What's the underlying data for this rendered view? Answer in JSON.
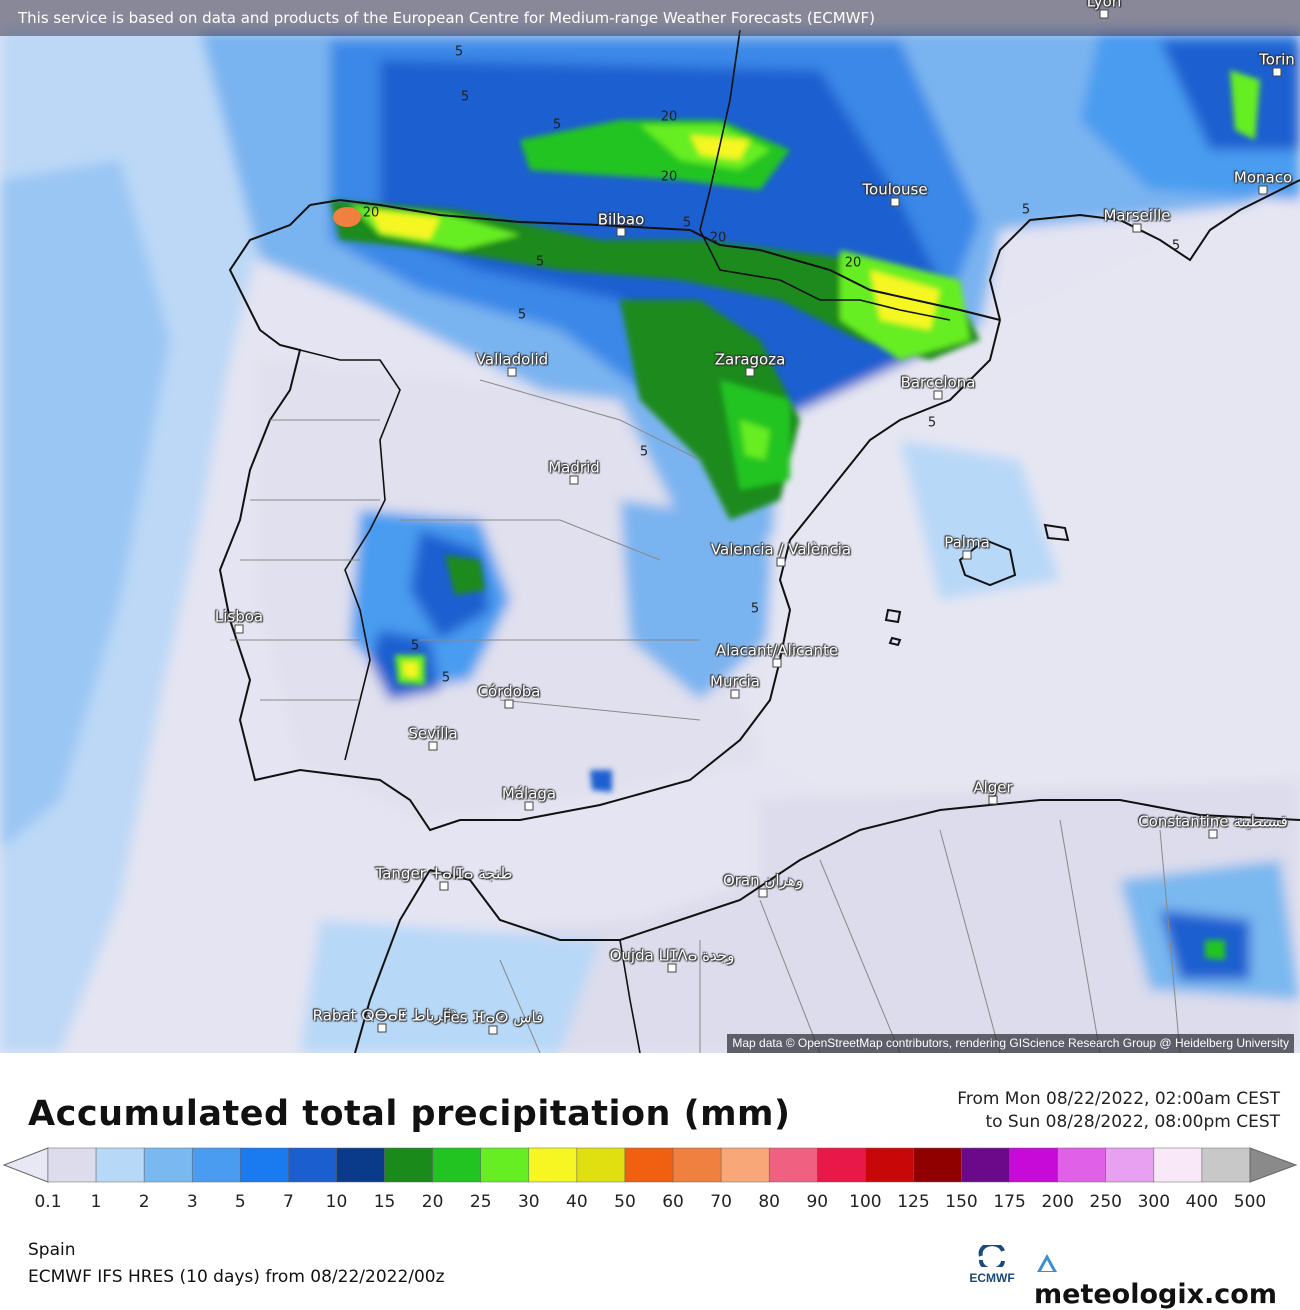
{
  "banner": "This service is based on data and products of the European Centre for Medium-range Weather Forecasts (ECMWF)",
  "attribution": "Map data © OpenStreetMap contributors, rendering GIScience Research Group @ Heidelberg University",
  "cities": [
    {
      "name": "Lyon"
    },
    {
      "name": "Torin"
    },
    {
      "name": "Monaco"
    },
    {
      "name": "Toulouse"
    },
    {
      "name": "Marseille"
    },
    {
      "name": "Bilbao"
    },
    {
      "name": "Valladolid"
    },
    {
      "name": "Zaragoza"
    },
    {
      "name": "Barcelona"
    },
    {
      "name": "Madrid"
    },
    {
      "name": "Valencia / València"
    },
    {
      "name": "Palma"
    },
    {
      "name": "Lisboa"
    },
    {
      "name": "Alacant/Alicante"
    },
    {
      "name": "Murcia"
    },
    {
      "name": "Córdoba"
    },
    {
      "name": "Sevilla"
    },
    {
      "name": "Málaga"
    },
    {
      "name": "Alger"
    },
    {
      "name": "Constantine قسنطينة"
    },
    {
      "name": "Tanger ⵜⴰⵏⵊⴰ طنجة"
    },
    {
      "name": "Oran وهران"
    },
    {
      "name": "Oujda ⵡⵊⴷⴰ وجدة"
    },
    {
      "name": "Rabat ⵕⴱⴰⵟ الرباط"
    },
    {
      "name": "Fès ⴼⴰⵙ فاس"
    }
  ],
  "contour_labels": [
    "5",
    "5",
    "5",
    "20",
    "20",
    "20",
    "20",
    "5",
    "20",
    "5",
    "5",
    "5",
    "5",
    "5",
    "5",
    "5",
    "5",
    "5"
  ],
  "legend": {
    "title": "Accumulated total precipitation (mm)",
    "period_from": "From Mon 08/22/2022, 02:00am CEST",
    "period_to": "to Sun 08/28/2022, 08:00pm CEST",
    "values": [
      "0.1",
      "1",
      "2",
      "3",
      "5",
      "7",
      "10",
      "15",
      "20",
      "25",
      "30",
      "40",
      "50",
      "60",
      "70",
      "80",
      "90",
      "100",
      "125",
      "150",
      "175",
      "200",
      "250",
      "300",
      "400",
      "500"
    ],
    "colors": [
      "#dcdcec",
      "#b8d8f8",
      "#7ab8f0",
      "#4a9cf0",
      "#1a7af0",
      "#1a5ed0",
      "#0a3a8a",
      "#1a8a1a",
      "#22c422",
      "#66ee22",
      "#f6f622",
      "#e0e010",
      "#f06010",
      "#f08040",
      "#f8a878",
      "#f06080",
      "#e81848",
      "#c80808",
      "#900000",
      "#6a0a8a",
      "#c80ad8",
      "#e060e8",
      "#e8a0f0",
      "#f8e8f8",
      "#c8c8c8"
    ]
  },
  "footer": {
    "region": "Spain",
    "model": "ECMWF IFS HRES (10 days) from 08/22/2022/00z",
    "ecmwf_logo_text": "ECMWF",
    "brand": "meteologix.com"
  }
}
